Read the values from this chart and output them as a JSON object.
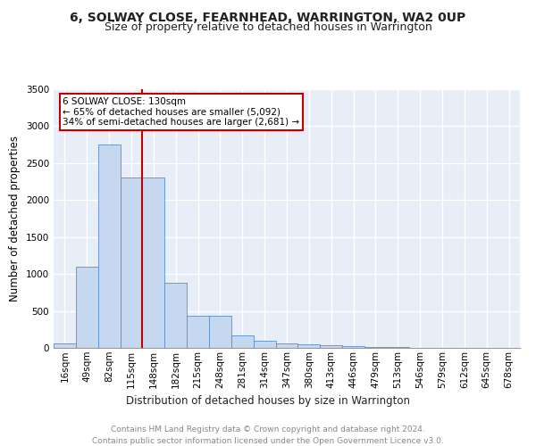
{
  "title": "6, SOLWAY CLOSE, FEARNHEAD, WARRINGTON, WA2 0UP",
  "subtitle": "Size of property relative to detached houses in Warrington",
  "xlabel": "Distribution of detached houses by size in Warrington",
  "ylabel": "Number of detached properties",
  "categories": [
    "16sqm",
    "49sqm",
    "82sqm",
    "115sqm",
    "148sqm",
    "182sqm",
    "215sqm",
    "248sqm",
    "281sqm",
    "314sqm",
    "347sqm",
    "380sqm",
    "413sqm",
    "446sqm",
    "479sqm",
    "513sqm",
    "546sqm",
    "579sqm",
    "612sqm",
    "645sqm",
    "678sqm"
  ],
  "values": [
    55,
    1100,
    2750,
    2300,
    2300,
    880,
    430,
    430,
    165,
    100,
    55,
    45,
    35,
    30,
    8,
    8,
    5,
    5,
    3,
    2,
    1
  ],
  "bar_color": "#c5d8f0",
  "bar_edge_color": "#5b8ec7",
  "vline_color": "#c00000",
  "annotation_text": "6 SOLWAY CLOSE: 130sqm\n← 65% of detached houses are smaller (5,092)\n34% of semi-detached houses are larger (2,681) →",
  "annotation_box_color": "#c00000",
  "ylim": [
    0,
    3500
  ],
  "yticks": [
    0,
    500,
    1000,
    1500,
    2000,
    2500,
    3000,
    3500
  ],
  "bg_color": "#e8eef8",
  "grid_color": "#ffffff",
  "footer_line1": "Contains HM Land Registry data © Crown copyright and database right 2024.",
  "footer_line2": "Contains public sector information licensed under the Open Government Licence v3.0.",
  "title_fontsize": 10,
  "subtitle_fontsize": 9,
  "xlabel_fontsize": 8.5,
  "ylabel_fontsize": 8.5,
  "tick_fontsize": 7.5
}
